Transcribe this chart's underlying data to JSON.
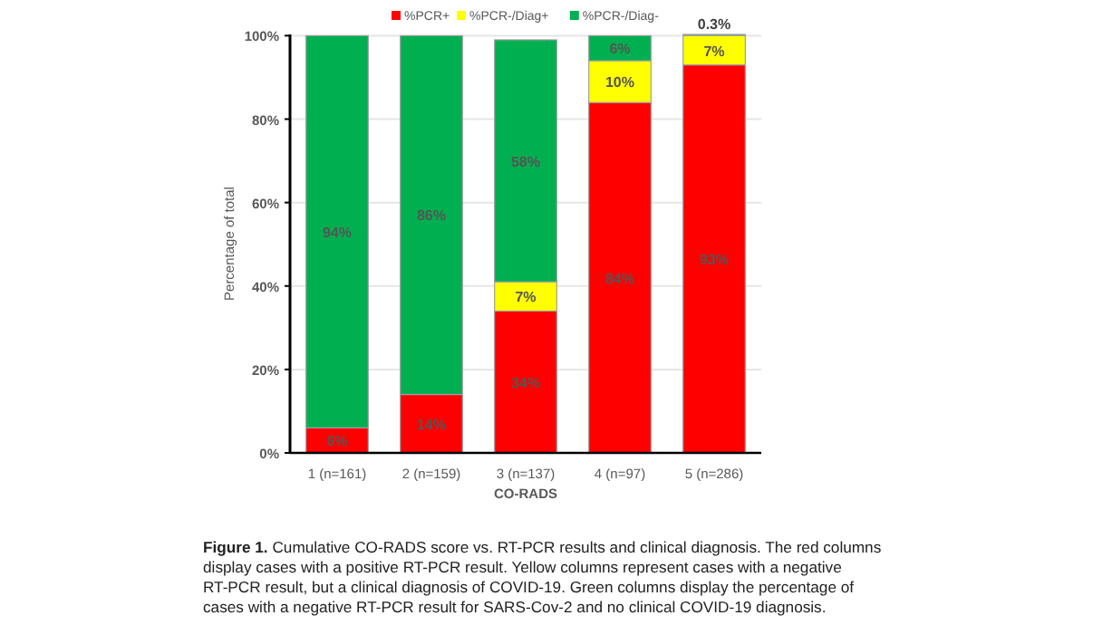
{
  "chart_data": {
    "type": "bar",
    "stacked": true,
    "ylabel": "Percentage of total",
    "xlabel": "CO-RADS",
    "categories": [
      "1 (n=161)",
      "2 (n=159)",
      "3 (n=137)",
      "4 (n=97)",
      "5 (n=286)"
    ],
    "series": [
      {
        "name": "%PCR+",
        "color": "#ff0000",
        "values": [
          6,
          14,
          34,
          84,
          93
        ],
        "value_labels": [
          "6%",
          "14%",
          "34%",
          "84%",
          "93%"
        ]
      },
      {
        "name": "%PCR-/Diag+",
        "color": "#ffff00",
        "values": [
          0,
          0,
          7,
          10,
          7
        ],
        "value_labels": [
          null,
          null,
          "7%",
          "10%",
          "7%"
        ]
      },
      {
        "name": "%PCR-/Diag-",
        "color": "#00b050",
        "values": [
          94,
          86,
          58,
          6,
          0.3
        ],
        "value_labels": [
          "94%",
          "86%",
          "58%",
          "6%",
          "0.3%"
        ]
      }
    ],
    "ylim": [
      0,
      100.3
    ],
    "yticks": [
      {
        "value": 0,
        "label": "0%"
      },
      {
        "value": 20,
        "label": "20%"
      },
      {
        "value": 40,
        "label": "40%"
      },
      {
        "value": 60,
        "label": "60%"
      },
      {
        "value": 80,
        "label": "80%"
      },
      {
        "value": 100,
        "label": "100%"
      }
    ],
    "grid": "y",
    "legend": "top",
    "annotations": [
      "Figure 1. Cumulative CO-RADS score vs. RT-PCR results and clinical diagnosis. The red columns display cases with a positive RT-PCR result. Yellow columns represent cases with a negative RT-PCR result, but a clinical diagnosis of COVID-19. Green columns display the percentage of cases with a negative RT-PCR result for SARS-Cov-2 and no clinical COVID-19 diagnosis."
    ]
  }
}
